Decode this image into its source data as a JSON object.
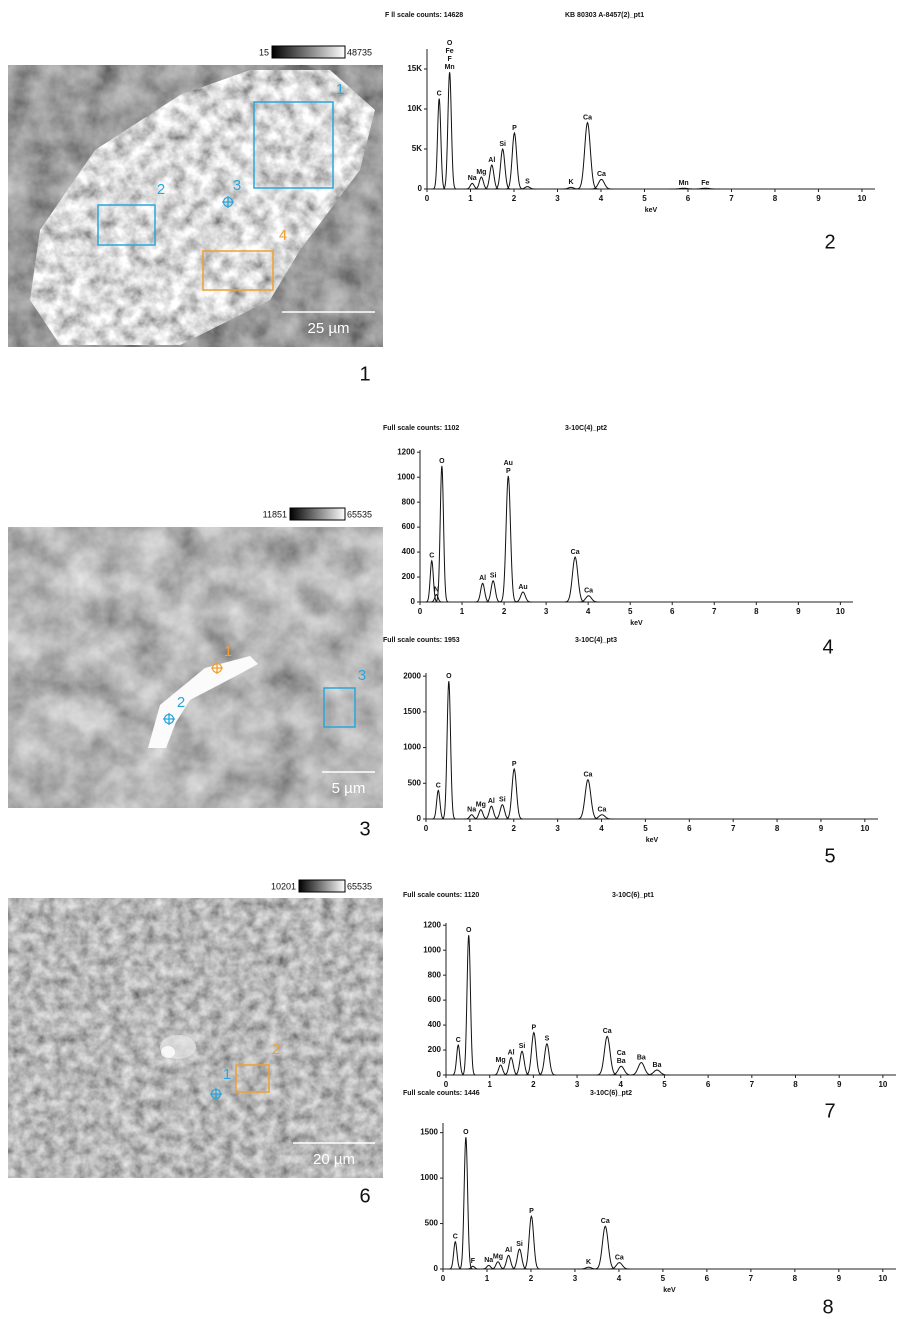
{
  "images": [
    {
      "label": "1",
      "colorbar": [
        "15",
        "48735"
      ],
      "scale_bar": "25 µm",
      "markers": [
        {
          "label": "1",
          "kind": "box",
          "color": "#2aa6dc"
        },
        {
          "label": "2",
          "kind": "box",
          "color": "#2aa6dc"
        },
        {
          "label": "3",
          "kind": "cross",
          "color": "#2aa6dc"
        },
        {
          "label": "4",
          "kind": "box",
          "color": "#f0a030"
        }
      ]
    },
    {
      "label": "3",
      "colorbar": [
        "11851",
        "65535"
      ],
      "scale_bar": "5 µm",
      "markers": [
        {
          "label": "1",
          "kind": "cross",
          "color": "#f0a030"
        },
        {
          "label": "2",
          "kind": "cross",
          "color": "#2aa6dc"
        },
        {
          "label": "3",
          "kind": "box",
          "color": "#2aa6dc"
        }
      ]
    },
    {
      "label": "6",
      "colorbar": [
        "10201",
        "65535"
      ],
      "scale_bar": "20 µm",
      "markers": [
        {
          "label": "1",
          "kind": "cross",
          "color": "#2aa6dc"
        },
        {
          "label": "2",
          "kind": "box",
          "color": "#f0a030"
        }
      ]
    }
  ],
  "spectra": [
    {
      "label": "2",
      "header": "F ll scale counts: 14628",
      "title": "KB 80303 A-8457(2)_pt1",
      "x_label": "keV",
      "xlim": [
        0,
        10.3
      ],
      "xticks": [
        0,
        1,
        2,
        3,
        4,
        5,
        6,
        7,
        8,
        9,
        10
      ],
      "ylim": [
        0,
        18000
      ],
      "yticks": [
        0,
        {
          "value": 5000,
          "label": "5K"
        },
        {
          "value": 10000,
          "label": "10K"
        },
        {
          "value": 15000,
          "label": "15K"
        }
      ],
      "peaks": [
        {
          "x": 0.28,
          "y": 11300,
          "labels": [
            "C"
          ]
        },
        {
          "x": 0.52,
          "y": 14600,
          "labels": [
            "O",
            "Fe",
            "F",
            "Mn"
          ]
        },
        {
          "x": 1.04,
          "y": 700,
          "labels": [
            "Na"
          ]
        },
        {
          "x": 1.25,
          "y": 1500,
          "labels": [
            "Mg"
          ]
        },
        {
          "x": 1.49,
          "y": 3000,
          "labels": [
            "Al"
          ]
        },
        {
          "x": 1.74,
          "y": 5000,
          "labels": [
            "Si"
          ]
        },
        {
          "x": 2.01,
          "y": 7000,
          "labels": [
            "P"
          ]
        },
        {
          "x": 2.31,
          "y": 300,
          "labels": [
            "S"
          ]
        },
        {
          "x": 3.31,
          "y": 200,
          "labels": [
            "K"
          ]
        },
        {
          "x": 3.69,
          "y": 8300,
          "labels": [
            "Ca"
          ]
        },
        {
          "x": 4.01,
          "y": 1200,
          "labels": [
            "Ca"
          ]
        },
        {
          "x": 5.9,
          "y": 100,
          "labels": [
            "Mn"
          ]
        },
        {
          "x": 6.4,
          "y": 100,
          "labels": [
            "Fe"
          ]
        }
      ]
    },
    {
      "label": "4",
      "header": "Full scale counts: 1102",
      "title": "3-10C(4)_pt2",
      "x_label": "keV",
      "xlim": [
        0,
        10.3
      ],
      "xticks": [
        0,
        1,
        2,
        3,
        4,
        5,
        6,
        7,
        8,
        9,
        10
      ],
      "ylim": [
        0,
        1250
      ],
      "yticks": [
        0,
        200,
        400,
        600,
        800,
        1000,
        1200
      ],
      "peaks": [
        {
          "x": 0.28,
          "y": 330,
          "labels": [
            "C"
          ]
        },
        {
          "x": 0.39,
          "y": 60,
          "labels": [
            "N"
          ]
        },
        {
          "x": 0.52,
          "y": 1090,
          "labels": [
            "O"
          ]
        },
        {
          "x": 1.49,
          "y": 150,
          "labels": [
            "Al"
          ]
        },
        {
          "x": 1.74,
          "y": 170,
          "labels": [
            "Si"
          ]
        },
        {
          "x": 2.1,
          "y": 1010,
          "labels": [
            "Au",
            "P"
          ]
        },
        {
          "x": 2.45,
          "y": 80,
          "labels": [
            "Au"
          ]
        },
        {
          "x": 3.69,
          "y": 360,
          "labels": [
            "Ca"
          ]
        },
        {
          "x": 4.01,
          "y": 50,
          "labels": [
            "Ca"
          ]
        }
      ]
    },
    {
      "label": "5",
      "header": "Full scale counts: 1953",
      "title": "3-10C(4)_pt3",
      "x_label": "keV",
      "xlim": [
        0,
        10.3
      ],
      "xticks": [
        0,
        1,
        2,
        3,
        4,
        5,
        6,
        7,
        8,
        9,
        10
      ],
      "ylim": [
        0,
        2100
      ],
      "yticks": [
        0,
        500,
        1000,
        1500,
        2000
      ],
      "peaks": [
        {
          "x": 0.28,
          "y": 400,
          "labels": [
            "C"
          ]
        },
        {
          "x": 0.52,
          "y": 1930,
          "labels": [
            "O"
          ]
        },
        {
          "x": 1.04,
          "y": 60,
          "labels": [
            "Na"
          ]
        },
        {
          "x": 1.25,
          "y": 130,
          "labels": [
            "Mg"
          ]
        },
        {
          "x": 1.49,
          "y": 180,
          "labels": [
            "Al"
          ]
        },
        {
          "x": 1.74,
          "y": 200,
          "labels": [
            "Si"
          ]
        },
        {
          "x": 2.01,
          "y": 700,
          "labels": [
            "P"
          ]
        },
        {
          "x": 3.69,
          "y": 550,
          "labels": [
            "Ca"
          ]
        },
        {
          "x": 4.01,
          "y": 60,
          "labels": [
            "Ca"
          ]
        }
      ]
    },
    {
      "label": "7",
      "header": "Full scale counts: 1120",
      "title": "3-10C(6)_pt1",
      "xlim": [
        0,
        10.3
      ],
      "xticks": [
        0,
        1,
        2,
        3,
        4,
        5,
        6,
        7,
        8,
        9,
        10
      ],
      "ylim": [
        0,
        1250
      ],
      "yticks": [
        0,
        200,
        400,
        600,
        800,
        1000,
        1200
      ],
      "peaks": [
        {
          "x": 0.28,
          "y": 240,
          "labels": [
            "C"
          ]
        },
        {
          "x": 0.52,
          "y": 1120,
          "labels": [
            "O"
          ]
        },
        {
          "x": 1.25,
          "y": 80,
          "labels": [
            "Mg"
          ]
        },
        {
          "x": 1.49,
          "y": 140,
          "labels": [
            "Al"
          ]
        },
        {
          "x": 1.74,
          "y": 190,
          "labels": [
            "Si"
          ]
        },
        {
          "x": 2.01,
          "y": 340,
          "labels": [
            "P"
          ]
        },
        {
          "x": 2.31,
          "y": 250,
          "labels": [
            "S"
          ]
        },
        {
          "x": 3.69,
          "y": 310,
          "labels": [
            "Ca"
          ]
        },
        {
          "x": 4.01,
          "y": 70,
          "labels": [
            "Ca",
            "Ba"
          ]
        },
        {
          "x": 4.47,
          "y": 100,
          "labels": [
            "Ba"
          ]
        },
        {
          "x": 4.83,
          "y": 40,
          "labels": [
            "Ba"
          ]
        }
      ]
    },
    {
      "label": "8",
      "header": "Full scale counts: 1446",
      "title": "3-10C(6)_pt2",
      "x_label": "keV",
      "xlim": [
        0,
        10.3
      ],
      "xticks": [
        0,
        1,
        2,
        3,
        4,
        5,
        6,
        7,
        8,
        9,
        10
      ],
      "ylim": [
        0,
        1650
      ],
      "yticks": [
        0,
        500,
        1000,
        1500
      ],
      "peaks": [
        {
          "x": 0.28,
          "y": 300,
          "labels": [
            "C"
          ]
        },
        {
          "x": 0.52,
          "y": 1450,
          "labels": [
            "O"
          ]
        },
        {
          "x": 0.68,
          "y": 30,
          "labels": [
            "F"
          ]
        },
        {
          "x": 1.04,
          "y": 40,
          "labels": [
            "Na"
          ]
        },
        {
          "x": 1.25,
          "y": 80,
          "labels": [
            "Mg"
          ]
        },
        {
          "x": 1.49,
          "y": 150,
          "labels": [
            "Al"
          ]
        },
        {
          "x": 1.74,
          "y": 220,
          "labels": [
            "Si"
          ]
        },
        {
          "x": 2.01,
          "y": 580,
          "labels": [
            "P"
          ]
        },
        {
          "x": 3.31,
          "y": 20,
          "labels": [
            "K"
          ]
        },
        {
          "x": 3.69,
          "y": 470,
          "labels": [
            "Ca"
          ]
        },
        {
          "x": 4.01,
          "y": 70,
          "labels": [
            "Ca"
          ]
        }
      ]
    }
  ]
}
